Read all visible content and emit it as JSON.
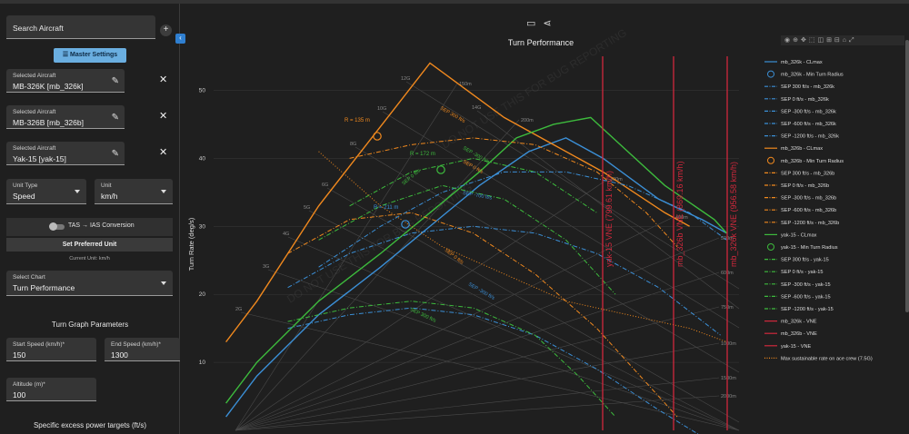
{
  "sidebar": {
    "search_placeholder": "Search Aircraft",
    "master_settings": "Master Settings",
    "selected": [
      {
        "label": "Selected Aircraft",
        "value": "MB-326K [mb_326k]"
      },
      {
        "label": "Selected Aircraft",
        "value": "MB-326B [mb_326b]"
      },
      {
        "label": "Selected Aircraft",
        "value": "Yak-15 [yak-15]"
      }
    ],
    "unit_type": {
      "label": "Unit Type",
      "value": "Speed"
    },
    "unit": {
      "label": "Unit",
      "value": "km/h"
    },
    "tas_ias": "TAS → IAS Conversion",
    "set_preferred": "Set Preferred Unit",
    "current_unit": "Current Unit: km/h",
    "select_chart": {
      "label": "Select Chart",
      "value": "Turn Performance"
    },
    "turn_params_title": "Turn Graph Parameters",
    "start_speed": {
      "label": "Start Speed (km/h)*",
      "value": "150"
    },
    "end_speed": {
      "label": "End Speed (km/h)*",
      "value": "1300"
    },
    "altitude": {
      "label": "Altitude (m)*",
      "value": "100"
    },
    "sep_title": "Specific excess power targets (ft/s)"
  },
  "icons": [
    "search-icon",
    "plus-icon",
    "collapse-icon",
    "sliders-icon",
    "edit-icon",
    "close-icon",
    "dropdown-arrow-icon",
    "toggle-icon",
    "ruler-icon",
    "share-icon",
    "camera-icon"
  ],
  "colors": {
    "mb_326k": "#3b8fd6",
    "mb_326b": "#f0891e",
    "yak15": "#3dbb3d",
    "vne": "#d0283c",
    "grid": "#444444"
  },
  "chart_data": {
    "type": "line",
    "title": "Turn Performance",
    "ylabel": "Turn Rate (deg/s)",
    "xlim": [
      150,
      1300
    ],
    "ylim": [
      0,
      55
    ],
    "y_ticks": [
      10,
      20,
      30,
      40,
      50
    ],
    "legend_position": "right",
    "g_labels": [
      "2G",
      "3G",
      "4G",
      "5G",
      "6G",
      "8G",
      "10G",
      "12G",
      "14G"
    ],
    "radius_labels": [
      "150m",
      "200m",
      "300m",
      "400m",
      "500m",
      "600m",
      "750m",
      "1000m",
      "1500m",
      "2000m"
    ],
    "watermark": "DO NOT USE THIS FOR BUG REPORTING",
    "annotations": {
      "mb_326b_min_radius": "R = 135 m",
      "yak15_min_radius": "R = 172 m",
      "mb_326k_min_radius": "R = 211 m"
    },
    "sep_curve_labels": [
      "SEP 300 ft/s",
      "SEP 0 ft/s",
      "SEP -300 ft/s",
      "SEP 0 ft/s",
      "SEP -300 ft/s",
      "SEP -700 ft/s",
      "SEP 300 ft/s",
      "SEP 0 ft/s"
    ],
    "vne_labels": [
      "yak-15 VNE (799.61 km/h)",
      "mb_326b VNE (869.16 km/h)",
      "mb_326k VNE (956.58 km/h)"
    ],
    "legend": [
      {
        "name": "mb_326k - CLmax",
        "color": "#3b8fd6",
        "style": "solid"
      },
      {
        "name": "mb_326k - Min Turn Radius",
        "color": "#3b8fd6",
        "style": "circle"
      },
      {
        "name": "SEP 300 ft/s - mb_326k",
        "color": "#3b8fd6",
        "style": "dashdot"
      },
      {
        "name": "SEP 0 ft/s - mb_326k",
        "color": "#3b8fd6",
        "style": "dashdot"
      },
      {
        "name": "SEP -300 ft/s - mb_326k",
        "color": "#3b8fd6",
        "style": "dashdot"
      },
      {
        "name": "SEP -600 ft/s - mb_326k",
        "color": "#3b8fd6",
        "style": "dashdot"
      },
      {
        "name": "SEP -1200 ft/s - mb_326k",
        "color": "#3b8fd6",
        "style": "dashdot"
      },
      {
        "name": "mb_326b - CLmax",
        "color": "#f0891e",
        "style": "solid"
      },
      {
        "name": "mb_326b - Min Turn Radius",
        "color": "#f0891e",
        "style": "circle"
      },
      {
        "name": "SEP 300 ft/s - mb_326b",
        "color": "#f0891e",
        "style": "dashdot"
      },
      {
        "name": "SEP 0 ft/s - mb_326b",
        "color": "#f0891e",
        "style": "dashdot"
      },
      {
        "name": "SEP -300 ft/s - mb_326b",
        "color": "#f0891e",
        "style": "dashdot"
      },
      {
        "name": "SEP -600 ft/s - mb_326b",
        "color": "#f0891e",
        "style": "dashdot"
      },
      {
        "name": "SEP -1200 ft/s - mb_326b",
        "color": "#f0891e",
        "style": "dashdot"
      },
      {
        "name": "yak-15 - CLmax",
        "color": "#3dbb3d",
        "style": "solid"
      },
      {
        "name": "yak-15 - Min Turn Radius",
        "color": "#3dbb3d",
        "style": "circle"
      },
      {
        "name": "SEP 300 ft/s - yak-15",
        "color": "#3dbb3d",
        "style": "dashdot"
      },
      {
        "name": "SEP 0 ft/s - yak-15",
        "color": "#3dbb3d",
        "style": "dashdot"
      },
      {
        "name": "SEP -300 ft/s - yak-15",
        "color": "#3dbb3d",
        "style": "dashdot"
      },
      {
        "name": "SEP -600 ft/s - yak-15",
        "color": "#3dbb3d",
        "style": "dashdot"
      },
      {
        "name": "SEP -1200 ft/s - yak-15",
        "color": "#3dbb3d",
        "style": "dashdot"
      },
      {
        "name": "mb_326k - VNE",
        "color": "#d0283c",
        "style": "solid"
      },
      {
        "name": "mb_326b - VNE",
        "color": "#d0283c",
        "style": "solid"
      },
      {
        "name": "yak-15 - VNE",
        "color": "#d0283c",
        "style": "solid"
      },
      {
        "name": "Max sustainable rate on ace crew (7.5G)",
        "color": "#f0891e",
        "style": "dotted"
      }
    ],
    "series": [
      {
        "name": "mb_326k - CLmax",
        "x": [
          150,
          200,
          300,
          400,
          480,
          560,
          640,
          700,
          760,
          850,
          920,
          960
        ],
        "y": [
          2,
          8,
          17,
          24,
          30,
          36,
          41,
          43,
          40,
          34,
          31,
          29
        ]
      },
      {
        "name": "mb_326b - CLmax",
        "x": [
          150,
          200,
          250,
          300,
          360,
          420,
          480,
          540,
          600,
          680,
          760,
          860,
          900
        ],
        "y": [
          13,
          19,
          26,
          33,
          40,
          47,
          54,
          50,
          46,
          42,
          38,
          32,
          30
        ]
      },
      {
        "name": "yak-15 - CLmax",
        "x": [
          150,
          200,
          300,
          400,
          480,
          560,
          620,
          680,
          740,
          800,
          860,
          940,
          960
        ],
        "y": [
          4,
          10,
          19,
          26,
          32,
          38,
          43,
          45,
          46,
          41,
          36,
          31,
          29
        ]
      },
      {
        "name": "SEP 300 ft/s - mb_326k",
        "x": [
          300,
          400,
          500,
          600,
          700,
          800,
          900,
          960
        ],
        "y": [
          24,
          30,
          35,
          38,
          38,
          36,
          32,
          28
        ]
      },
      {
        "name": "SEP 0 ft/s - mb_326k",
        "x": [
          250,
          350,
          450,
          550,
          650,
          750,
          850,
          950
        ],
        "y": [
          21,
          26,
          29,
          30,
          29,
          26,
          21,
          14
        ]
      },
      {
        "name": "SEP -300 ft/s - mb_326k",
        "x": [
          250,
          350,
          450,
          550,
          650,
          750,
          850,
          940
        ],
        "y": [
          15,
          17,
          18,
          17,
          14,
          9,
          3,
          -2
        ]
      },
      {
        "name": "SEP 300 ft/s - mb_326b",
        "x": [
          350,
          450,
          550,
          650,
          750,
          830,
          880
        ],
        "y": [
          40,
          42,
          43,
          42,
          38,
          32,
          27
        ]
      },
      {
        "name": "SEP 0 ft/s - mb_326b",
        "x": [
          250,
          350,
          450,
          550,
          650,
          750,
          850,
          880
        ],
        "y": [
          26,
          31,
          32,
          29,
          23,
          15,
          5,
          2
        ]
      },
      {
        "name": "SEP 300 ft/s - yak-15",
        "x": [
          350,
          450,
          550,
          650,
          750
        ],
        "y": [
          33,
          38,
          40,
          38,
          32
        ]
      },
      {
        "name": "SEP 0 ft/s - yak-15",
        "x": [
          300,
          400,
          500,
          600,
          700,
          780
        ],
        "y": [
          28,
          33,
          36,
          34,
          28,
          20
        ]
      },
      {
        "name": "SEP -300 ft/s - yak-15",
        "x": [
          250,
          350,
          450,
          550,
          650,
          720,
          780
        ],
        "y": [
          16,
          18,
          19,
          18,
          14,
          8,
          2
        ]
      },
      {
        "name": "Max sustainable rate on ace crew (7.5G)",
        "x": [
          300,
          400,
          500,
          600,
          700,
          800,
          900,
          960
        ],
        "y": [
          41,
          33,
          27,
          23,
          19,
          17,
          15,
          13
        ]
      }
    ],
    "vne": [
      {
        "name": "yak-15 - VNE",
        "x": 799.61
      },
      {
        "name": "mb_326b - VNE",
        "x": 869.16
      },
      {
        "name": "mb_326k - VNE",
        "x": 956.58
      }
    ],
    "min_radius_points": [
      {
        "name": "mb_326b - Min Turn Radius",
        "x": 330,
        "y": 46
      },
      {
        "name": "yak-15 - Min Turn Radius",
        "x": 405,
        "y": 41
      },
      {
        "name": "mb_326k - Min Turn Radius",
        "x": 350,
        "y": 32
      }
    ]
  }
}
